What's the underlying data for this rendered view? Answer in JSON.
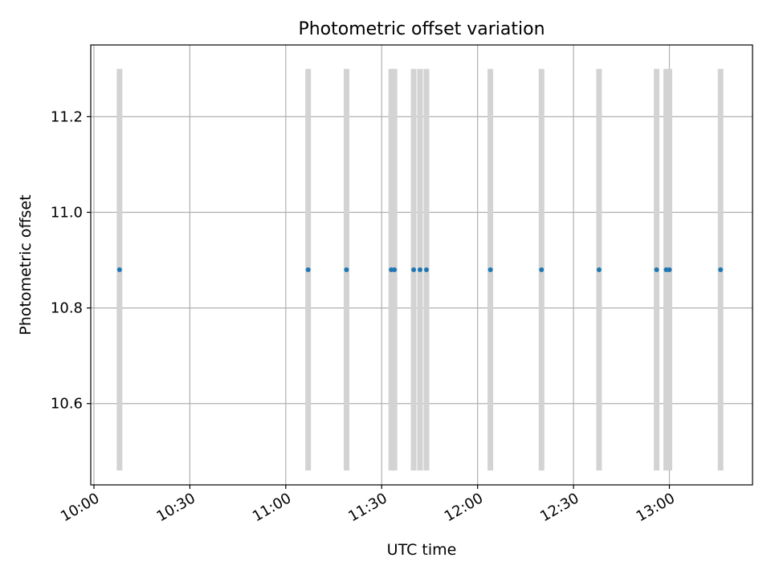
{
  "chart_data": {
    "type": "scatter",
    "title": "Photometric offset variation",
    "xlabel": "UTC time",
    "ylabel": "Photometric offset",
    "x_ticks": [
      "10:00",
      "10:30",
      "11:00",
      "11:30",
      "12:00",
      "12:30",
      "13:00"
    ],
    "y_ticks": [
      "10.6",
      "10.8",
      "11.0",
      "11.2"
    ],
    "xlim": [
      "09:59",
      "13:26"
    ],
    "ylim": [
      10.43,
      11.35
    ],
    "grid": true,
    "colors": {
      "points": "#1f77b4",
      "bands": "#d3d3d3",
      "grid": "#b0b0b0"
    },
    "bands": {
      "ymin": 10.46,
      "ymax": 11.3
    },
    "points": [
      {
        "x": "10:08",
        "y": 10.88
      },
      {
        "x": "11:07",
        "y": 10.88
      },
      {
        "x": "11:19",
        "y": 10.88
      },
      {
        "x": "11:33",
        "y": 10.88
      },
      {
        "x": "11:34",
        "y": 10.88
      },
      {
        "x": "11:40",
        "y": 10.88
      },
      {
        "x": "11:42",
        "y": 10.88
      },
      {
        "x": "11:44",
        "y": 10.88
      },
      {
        "x": "12:04",
        "y": 10.88
      },
      {
        "x": "12:20",
        "y": 10.88
      },
      {
        "x": "12:38",
        "y": 10.88
      },
      {
        "x": "12:56",
        "y": 10.88
      },
      {
        "x": "12:59",
        "y": 10.88
      },
      {
        "x": "13:00",
        "y": 10.88
      },
      {
        "x": "13:16",
        "y": 10.88
      }
    ]
  }
}
